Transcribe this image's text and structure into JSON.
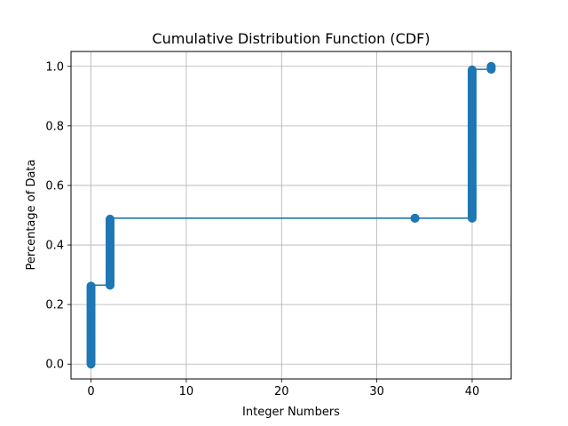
{
  "chart_data": {
    "type": "line",
    "title": "Cumulative Distribution Function (CDF)",
    "xlabel": "Integer Numbers",
    "ylabel": "Percentage of Data",
    "xlim": [
      -2.1,
      44.1
    ],
    "ylim": [
      -0.05,
      1.05
    ],
    "xticks": [
      0,
      10,
      20,
      30,
      40
    ],
    "yticks": [
      0.0,
      0.2,
      0.4,
      0.6,
      0.8,
      1.0
    ],
    "xtick_labels": [
      "0",
      "10",
      "20",
      "30",
      "40"
    ],
    "ytick_labels": [
      "0.0",
      "0.2",
      "0.4",
      "0.6",
      "0.8",
      "1.0"
    ],
    "grid": true,
    "marker": "circle",
    "color": "#1f77b4",
    "series": [
      {
        "x": [
          0,
          0,
          2,
          2,
          34,
          40,
          40,
          42,
          42
        ],
        "y": [
          0.0,
          0.265,
          0.265,
          0.49,
          0.49,
          0.49,
          0.99,
          0.99,
          1.0
        ]
      }
    ],
    "point_clusters": [
      {
        "x": 0,
        "y_from": 0.0,
        "y_to": 0.262
      },
      {
        "x": 2,
        "y_from": 0.265,
        "y_to": 0.487
      },
      {
        "x": 34,
        "y_from": 0.49,
        "y_to": 0.49
      },
      {
        "x": 40,
        "y_from": 0.49,
        "y_to": 0.988
      },
      {
        "x": 42,
        "y_from": 0.99,
        "y_to": 1.0
      }
    ]
  }
}
